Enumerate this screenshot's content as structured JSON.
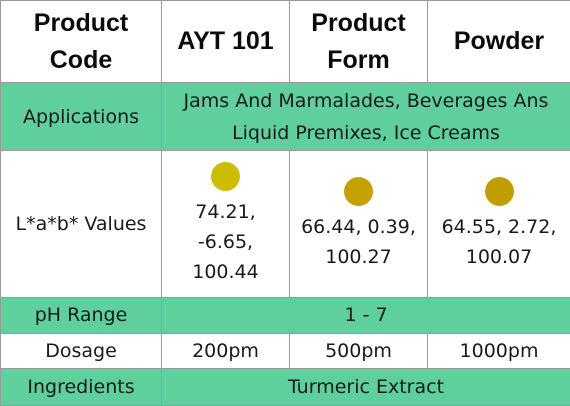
{
  "header": {
    "label_1": "Product Code",
    "value_1": "AYT 101",
    "label_2": "Product Form",
    "value_2": "Powder"
  },
  "applications": {
    "label": "Applications",
    "value": "Jams And Marmalades, Beverages Ans Liquid Premixes, Ice Creams"
  },
  "lab": {
    "label": "L*a*b* Values",
    "swatches": [
      {
        "values": "74.21, -6.65, 100.44",
        "color": "#cdbd00"
      },
      {
        "values": "66.44, 0.39, 100.27",
        "color": "#c4a000"
      },
      {
        "values": "64.55, 2.72, 100.07",
        "color": "#c19d00"
      }
    ]
  },
  "ph": {
    "label": "pH Range",
    "value": "1 - 7"
  },
  "dosage": {
    "label": "Dosage",
    "values": [
      "200pm",
      "500pm",
      "1000pm"
    ]
  },
  "ingredients": {
    "label": "Ingredients",
    "value": "Turmeric Extract"
  },
  "colors": {
    "header_bg": "#ffffff",
    "accent_row": "#5fcf9d",
    "border": "#9a9a9a"
  }
}
